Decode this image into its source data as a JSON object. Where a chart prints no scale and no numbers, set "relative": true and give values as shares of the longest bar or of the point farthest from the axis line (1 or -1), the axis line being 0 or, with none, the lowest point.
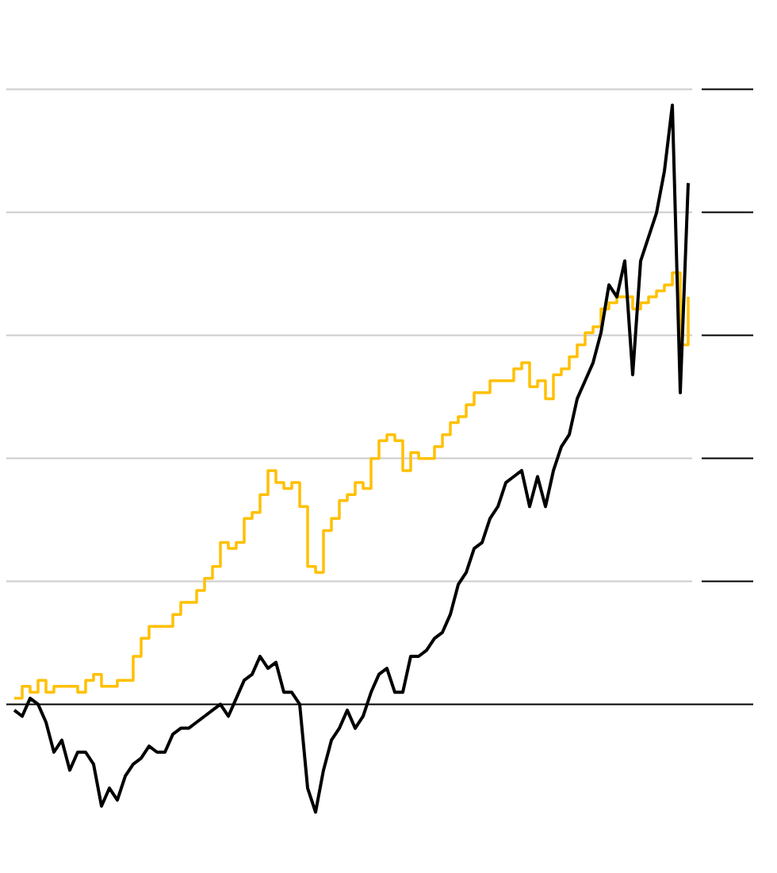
{
  "chart_data": {
    "type": "line",
    "relative": true,
    "categories": [
      null,
      null,
      null,
      null,
      null,
      null,
      null,
      null,
      null,
      null,
      null,
      null,
      null,
      null,
      null,
      null,
      null,
      null,
      null,
      null,
      null,
      null,
      null,
      null,
      null,
      null,
      null,
      null,
      null,
      null,
      null,
      null,
      null,
      null,
      null,
      null,
      null,
      null,
      null,
      null,
      null,
      null,
      null,
      null,
      null,
      null,
      null,
      null,
      null,
      null,
      null,
      null,
      null,
      null,
      null,
      null,
      null,
      null,
      null,
      null,
      null,
      null,
      null,
      null,
      null,
      null,
      null,
      null,
      null,
      null,
      null,
      null,
      null,
      null,
      null,
      null,
      null,
      null,
      null,
      null,
      null,
      null,
      null,
      null,
      null,
      null
    ],
    "grid": "y",
    "series": [
      {
        "type": "step",
        "color": "#ffc000",
        "values": [
          0.01,
          0.03,
          0.02,
          0.04,
          0.02,
          0.03,
          0.03,
          0.03,
          0.02,
          0.04,
          0.05,
          0.03,
          0.03,
          0.04,
          0.04,
          0.08,
          0.11,
          0.13,
          0.13,
          0.13,
          0.15,
          0.17,
          0.17,
          0.19,
          0.21,
          0.23,
          0.27,
          0.26,
          0.27,
          0.31,
          0.32,
          0.35,
          0.39,
          0.37,
          0.36,
          0.37,
          0.33,
          0.23,
          0.22,
          0.29,
          0.31,
          0.34,
          0.35,
          0.37,
          0.36,
          0.41,
          0.44,
          0.45,
          0.44,
          0.39,
          0.42,
          0.41,
          0.41,
          0.43,
          0.45,
          0.47,
          0.48,
          0.5,
          0.52,
          0.52,
          0.54,
          0.54,
          0.54,
          0.56,
          0.57,
          0.53,
          0.54,
          0.51,
          0.55,
          0.56,
          0.58,
          0.6,
          0.62,
          0.63,
          0.66,
          0.67,
          0.68,
          0.68,
          0.66,
          0.67,
          0.68,
          0.69,
          0.7,
          0.72,
          0.6,
          0.68
        ]
      },
      {
        "color": "#000000",
        "values": [
          -0.01,
          -0.02,
          0.01,
          0.0,
          -0.03,
          -0.08,
          -0.06,
          -0.11,
          -0.08,
          -0.08,
          -0.1,
          -0.17,
          -0.14,
          -0.16,
          -0.12,
          -0.1,
          -0.09,
          -0.07,
          -0.08,
          -0.08,
          -0.05,
          -0.04,
          -0.04,
          -0.03,
          -0.02,
          -0.01,
          0.0,
          -0.02,
          0.01,
          0.04,
          0.05,
          0.08,
          0.06,
          0.07,
          0.02,
          0.02,
          0.0,
          -0.14,
          -0.18,
          -0.11,
          -0.06,
          -0.04,
          -0.01,
          -0.04,
          -0.02,
          0.02,
          0.05,
          0.06,
          0.02,
          0.02,
          0.08,
          0.08,
          0.09,
          0.11,
          0.12,
          0.15,
          0.2,
          0.22,
          0.26,
          0.27,
          0.31,
          0.33,
          0.37,
          0.38,
          0.39,
          0.33,
          0.38,
          0.33,
          0.39,
          0.43,
          0.45,
          0.51,
          0.54,
          0.57,
          0.62,
          0.7,
          0.68,
          0.74,
          0.55,
          0.74,
          0.78,
          0.82,
          0.89,
          1.0,
          0.52,
          0.87
        ]
      }
    ]
  }
}
